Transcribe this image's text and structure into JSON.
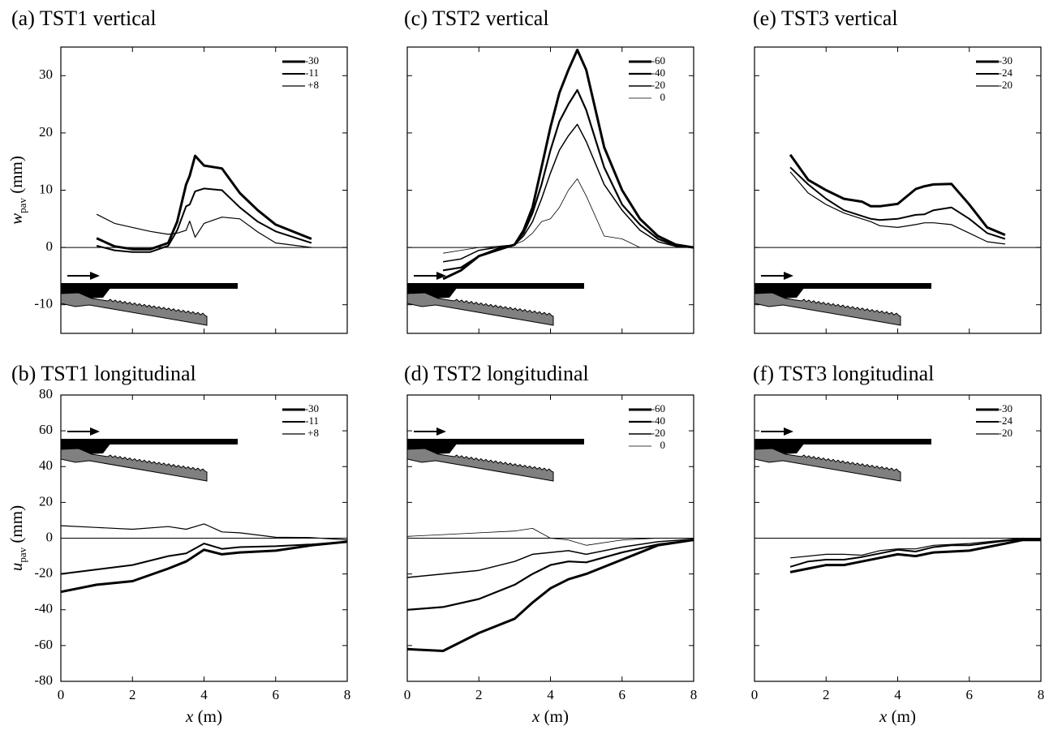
{
  "chart_data": [
    {
      "type": "line",
      "title": "(a) TST1 vertical",
      "ylabel": "w",
      "ylabel_sub": "pav",
      "ylabel_unit": "(mm)",
      "xlim": [
        0,
        8
      ],
      "ylim": [
        -15,
        35
      ],
      "yticks": [
        -10,
        0,
        10,
        20,
        30
      ],
      "legend": "upper right",
      "x": [
        1,
        1.5,
        2,
        2.5,
        3,
        3.25,
        3.5,
        3.6,
        3.75,
        4,
        4.5,
        5,
        5.5,
        6,
        7
      ],
      "series": [
        {
          "name": "-30",
          "color": "#000000",
          "width": 3,
          "values": [
            1.6,
            0.2,
            -0.3,
            -0.3,
            0.8,
            4.5,
            11,
            12.5,
            16,
            14.3,
            13.8,
            9.5,
            6.5,
            4,
            1.5
          ]
        },
        {
          "name": "-11",
          "color": "#000000",
          "width": 2,
          "values": [
            0.3,
            -0.5,
            -0.8,
            -0.8,
            0.3,
            3,
            7.2,
            7.5,
            9.8,
            10.3,
            10,
            7,
            4.5,
            2.8,
            0.8
          ]
        },
        {
          "name": "+8",
          "color": "#000000",
          "width": 1.2,
          "values": [
            5.8,
            4.2,
            3.5,
            2.8,
            2.3,
            2.5,
            3,
            4.6,
            1.8,
            4.2,
            5.3,
            5,
            2.7,
            0.8,
            0
          ]
        }
      ]
    },
    {
      "type": "line",
      "title": "(c) TST2 vertical",
      "xlim": [
        0,
        8
      ],
      "ylim": [
        -15,
        35
      ],
      "legend": "upper right",
      "x": [
        1,
        1.5,
        2,
        2.5,
        3,
        3.25,
        3.5,
        3.75,
        4,
        4.25,
        4.5,
        4.75,
        5,
        5.5,
        6,
        6.5,
        7,
        7.5,
        8
      ],
      "series": [
        {
          "name": "-60",
          "color": "#000000",
          "width": 3,
          "values": [
            -5.5,
            -4,
            -1.5,
            -0.5,
            0.5,
            3,
            7,
            14,
            21,
            27,
            31,
            34.5,
            31,
            17.5,
            10,
            5,
            2,
            0.5,
            0
          ]
        },
        {
          "name": "-40",
          "color": "#000000",
          "width": 2.2,
          "values": [
            -4,
            -3.5,
            -1.5,
            -0.3,
            0.5,
            2.5,
            6,
            11,
            17,
            22,
            25,
            27.5,
            24,
            14,
            7.5,
            4,
            1.5,
            0.3,
            0
          ]
        },
        {
          "name": "-20",
          "color": "#000000",
          "width": 1.5,
          "values": [
            -2.5,
            -2,
            -0.5,
            0,
            0.5,
            2,
            4.5,
            8.5,
            13,
            17,
            19.5,
            21.5,
            18.5,
            11,
            6.5,
            3,
            1,
            0.2,
            0
          ]
        },
        {
          "name": "0",
          "color": "#000000",
          "width": 0.8,
          "values": [
            -1,
            -0.5,
            0,
            0.2,
            0.5,
            1.2,
            2.5,
            4.5,
            5,
            7,
            10,
            12,
            9,
            2,
            1.5,
            0,
            0,
            0,
            0
          ]
        }
      ]
    },
    {
      "type": "line",
      "title": "(e) TST3 vertical",
      "xlim": [
        0,
        8
      ],
      "ylim": [
        -15,
        35
      ],
      "legend": "upper right",
      "x": [
        1,
        1.5,
        2,
        2.5,
        3,
        3.25,
        3.5,
        4,
        4.5,
        4.75,
        5,
        5.5,
        6,
        6.5,
        7
      ],
      "series": [
        {
          "name": "-30",
          "color": "#000000",
          "width": 3,
          "values": [
            16.2,
            11.8,
            10,
            8.5,
            8,
            7.2,
            7.2,
            7.6,
            10.2,
            10.7,
            11,
            11.1,
            7.5,
            3.5,
            2.2
          ]
        },
        {
          "name": "-24",
          "color": "#000000",
          "width": 2,
          "values": [
            14,
            11,
            8.5,
            6.5,
            5.5,
            5,
            4.8,
            5,
            5.7,
            5.8,
            6.5,
            7,
            5,
            2.5,
            1.5
          ]
        },
        {
          "name": "-20",
          "color": "#000000",
          "width": 1.2,
          "values": [
            13.2,
            9.5,
            7.5,
            6,
            5,
            4.5,
            3.8,
            3.5,
            4,
            4.3,
            4.3,
            4,
            2.5,
            1,
            0.6
          ]
        }
      ]
    },
    {
      "type": "line",
      "title": "(b) TST1 longitudinal",
      "ylabel": "u",
      "ylabel_sub": "pav",
      "ylabel_unit": "(mm)",
      "xlabel": "x",
      "xlabel_unit": "(m)",
      "xlim": [
        0,
        8
      ],
      "xticks": [
        0,
        2,
        4,
        6,
        8
      ],
      "ylim": [
        -80,
        80
      ],
      "yticks": [
        -80,
        -60,
        -40,
        -20,
        0,
        20,
        40,
        60,
        80
      ],
      "legend": "upper right",
      "x": [
        0,
        1,
        2,
        3,
        3.5,
        4,
        4.5,
        5,
        6,
        7,
        8
      ],
      "series": [
        {
          "name": "-30",
          "color": "#000000",
          "width": 3,
          "values": [
            -30,
            -26,
            -24,
            -17,
            -13,
            -6.5,
            -9,
            -8,
            -7,
            -4,
            -2
          ]
        },
        {
          "name": "-11",
          "color": "#000000",
          "width": 2,
          "values": [
            -20,
            -17.5,
            -15,
            -10,
            -8.5,
            -3,
            -6,
            -5,
            -4.5,
            -3.5,
            -2
          ]
        },
        {
          "name": "+8",
          "color": "#000000",
          "width": 1.2,
          "values": [
            7,
            6,
            5,
            6.5,
            5,
            8,
            3.5,
            3,
            0.5,
            0.3,
            -1
          ]
        }
      ]
    },
    {
      "type": "line",
      "title": "(d) TST2 longitudinal",
      "xlabel": "x",
      "xlabel_unit": "(m)",
      "xlim": [
        0,
        8
      ],
      "xticks": [
        0,
        2,
        4,
        6,
        8
      ],
      "ylim": [
        -80,
        80
      ],
      "legend": "upper right",
      "x": [
        0,
        1,
        2,
        3,
        3.5,
        4,
        4.5,
        5,
        6,
        7,
        8
      ],
      "series": [
        {
          "name": "-60",
          "color": "#000000",
          "width": 3,
          "values": [
            -62,
            -63,
            -53,
            -45,
            -36,
            -28,
            -23,
            -20,
            -12,
            -4,
            -1
          ]
        },
        {
          "name": "-40",
          "color": "#000000",
          "width": 2.2,
          "values": [
            -40,
            -38.5,
            -34,
            -26,
            -20,
            -15,
            -13,
            -13.5,
            -8,
            -3.5,
            -1
          ]
        },
        {
          "name": "-20",
          "color": "#000000",
          "width": 1.5,
          "values": [
            -22,
            -20,
            -18,
            -13,
            -9,
            -8,
            -7,
            -9,
            -5,
            -2,
            -0.5
          ]
        },
        {
          "name": "0",
          "color": "#000000",
          "width": 0.8,
          "values": [
            1,
            2,
            3,
            4,
            5.5,
            0,
            -1,
            -4,
            -1,
            0,
            0
          ]
        }
      ]
    },
    {
      "type": "line",
      "title": "(f) TST3 longitudinal",
      "xlabel": "x",
      "xlabel_unit": "(m)",
      "xlim": [
        0,
        8
      ],
      "xticks": [
        0,
        2,
        4,
        6,
        8
      ],
      "ylim": [
        -80,
        80
      ],
      "legend": "upper right",
      "x": [
        1,
        1.5,
        2,
        2.5,
        3,
        3.5,
        4,
        4.5,
        5,
        5.5,
        6,
        7,
        7.5,
        8
      ],
      "series": [
        {
          "name": "-30",
          "color": "#000000",
          "width": 3,
          "values": [
            -19,
            -17,
            -15,
            -15,
            -13,
            -11,
            -9,
            -10,
            -8,
            -7.5,
            -7,
            -3,
            -1,
            -1
          ]
        },
        {
          "name": "-24",
          "color": "#000000",
          "width": 2,
          "values": [
            -16,
            -13,
            -12,
            -12,
            -10.5,
            -8.5,
            -6.5,
            -7.5,
            -5,
            -4,
            -4,
            -1.5,
            -0.5,
            -0.5
          ]
        },
        {
          "name": "-20",
          "color": "#000000",
          "width": 1.2,
          "values": [
            -11,
            -10,
            -9,
            -9,
            -9.5,
            -7,
            -6,
            -6,
            -4,
            -3.5,
            -3,
            -1,
            0,
            -0.5
          ]
        }
      ]
    }
  ]
}
